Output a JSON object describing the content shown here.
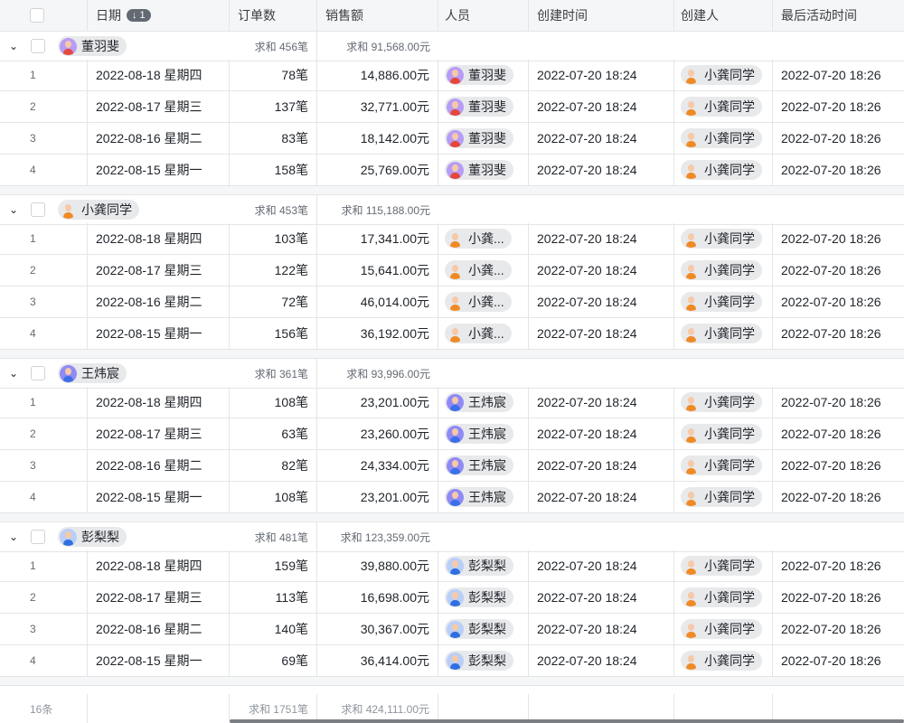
{
  "header": {
    "columns": [
      "日期",
      "订单数",
      "销售额",
      "人员",
      "创建时间",
      "创建人",
      "最后活动时间"
    ],
    "sort_badge": "↓ 1"
  },
  "people": {
    "董羽斐": {
      "bg": "#b79cf5",
      "shirt": "#e4483c"
    },
    "小龚同学": {
      "bg": "#e8e9eb",
      "shirt": "#f08a24"
    },
    "王炜宸": {
      "bg": "#8f8af5",
      "shirt": "#3c6fe8"
    },
    "彭梨梨": {
      "bg": "#b9cff8",
      "shirt": "#2f6fe0"
    }
  },
  "groups": [
    {
      "name": "董羽斐",
      "person_display": "董羽斐",
      "order_sum": "求和 456笔",
      "sales_sum": "求和 91,568.00元",
      "rows": [
        {
          "index": "1",
          "date": "2022-08-18 星期四",
          "orders": "78笔",
          "sales": "14,886.00元",
          "created": "2022-07-20 18:24",
          "creator": "小龚同学",
          "last_active": "2022-07-20 18:26"
        },
        {
          "index": "2",
          "date": "2022-08-17 星期三",
          "orders": "137笔",
          "sales": "32,771.00元",
          "created": "2022-07-20 18:24",
          "creator": "小龚同学",
          "last_active": "2022-07-20 18:26"
        },
        {
          "index": "3",
          "date": "2022-08-16 星期二",
          "orders": "83笔",
          "sales": "18,142.00元",
          "created": "2022-07-20 18:24",
          "creator": "小龚同学",
          "last_active": "2022-07-20 18:26"
        },
        {
          "index": "4",
          "date": "2022-08-15 星期一",
          "orders": "158笔",
          "sales": "25,769.00元",
          "created": "2022-07-20 18:24",
          "creator": "小龚同学",
          "last_active": "2022-07-20 18:26"
        }
      ]
    },
    {
      "name": "小龚同学",
      "person_display": "小龚...",
      "order_sum": "求和 453笔",
      "sales_sum": "求和 115,188.00元",
      "rows": [
        {
          "index": "1",
          "date": "2022-08-18 星期四",
          "orders": "103笔",
          "sales": "17,341.00元",
          "created": "2022-07-20 18:24",
          "creator": "小龚同学",
          "last_active": "2022-07-20 18:26"
        },
        {
          "index": "2",
          "date": "2022-08-17 星期三",
          "orders": "122笔",
          "sales": "15,641.00元",
          "created": "2022-07-20 18:24",
          "creator": "小龚同学",
          "last_active": "2022-07-20 18:26"
        },
        {
          "index": "3",
          "date": "2022-08-16 星期二",
          "orders": "72笔",
          "sales": "46,014.00元",
          "created": "2022-07-20 18:24",
          "creator": "小龚同学",
          "last_active": "2022-07-20 18:26"
        },
        {
          "index": "4",
          "date": "2022-08-15 星期一",
          "orders": "156笔",
          "sales": "36,192.00元",
          "created": "2022-07-20 18:24",
          "creator": "小龚同学",
          "last_active": "2022-07-20 18:26"
        }
      ]
    },
    {
      "name": "王炜宸",
      "person_display": "王炜宸",
      "order_sum": "求和 361笔",
      "sales_sum": "求和 93,996.00元",
      "rows": [
        {
          "index": "1",
          "date": "2022-08-18 星期四",
          "orders": "108笔",
          "sales": "23,201.00元",
          "created": "2022-07-20 18:24",
          "creator": "小龚同学",
          "last_active": "2022-07-20 18:26"
        },
        {
          "index": "2",
          "date": "2022-08-17 星期三",
          "orders": "63笔",
          "sales": "23,260.00元",
          "created": "2022-07-20 18:24",
          "creator": "小龚同学",
          "last_active": "2022-07-20 18:26"
        },
        {
          "index": "3",
          "date": "2022-08-16 星期二",
          "orders": "82笔",
          "sales": "24,334.00元",
          "created": "2022-07-20 18:24",
          "creator": "小龚同学",
          "last_active": "2022-07-20 18:26"
        },
        {
          "index": "4",
          "date": "2022-08-15 星期一",
          "orders": "108笔",
          "sales": "23,201.00元",
          "created": "2022-07-20 18:24",
          "creator": "小龚同学",
          "last_active": "2022-07-20 18:26"
        }
      ]
    },
    {
      "name": "彭梨梨",
      "person_display": "彭梨梨",
      "order_sum": "求和 481笔",
      "sales_sum": "求和 123,359.00元",
      "rows": [
        {
          "index": "1",
          "date": "2022-08-18 星期四",
          "orders": "159笔",
          "sales": "39,880.00元",
          "created": "2022-07-20 18:24",
          "creator": "小龚同学",
          "last_active": "2022-07-20 18:26"
        },
        {
          "index": "2",
          "date": "2022-08-17 星期三",
          "orders": "113笔",
          "sales": "16,698.00元",
          "created": "2022-07-20 18:24",
          "creator": "小龚同学",
          "last_active": "2022-07-20 18:26"
        },
        {
          "index": "3",
          "date": "2022-08-16 星期二",
          "orders": "140笔",
          "sales": "30,367.00元",
          "created": "2022-07-20 18:24",
          "creator": "小龚同学",
          "last_active": "2022-07-20 18:26"
        },
        {
          "index": "4",
          "date": "2022-08-15 星期一",
          "orders": "69笔",
          "sales": "36,414.00元",
          "created": "2022-07-20 18:24",
          "creator": "小龚同学",
          "last_active": "2022-07-20 18:26"
        }
      ]
    }
  ],
  "footer": {
    "count": "16条",
    "order_sum": "求和 1751笔",
    "sales_sum": "求和 424,111.00元"
  }
}
